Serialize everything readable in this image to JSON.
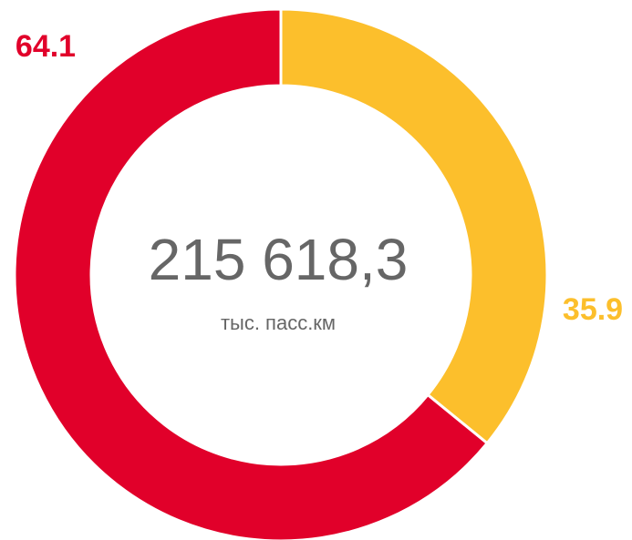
{
  "chart_data": {
    "type": "pie",
    "donut": true,
    "values": [
      35.9,
      64.1
    ],
    "colors": [
      "#fcbf2c",
      "#e1002a"
    ],
    "center_label": "215 618,3",
    "center_sublabel": "тыс. пасс.км"
  }
}
